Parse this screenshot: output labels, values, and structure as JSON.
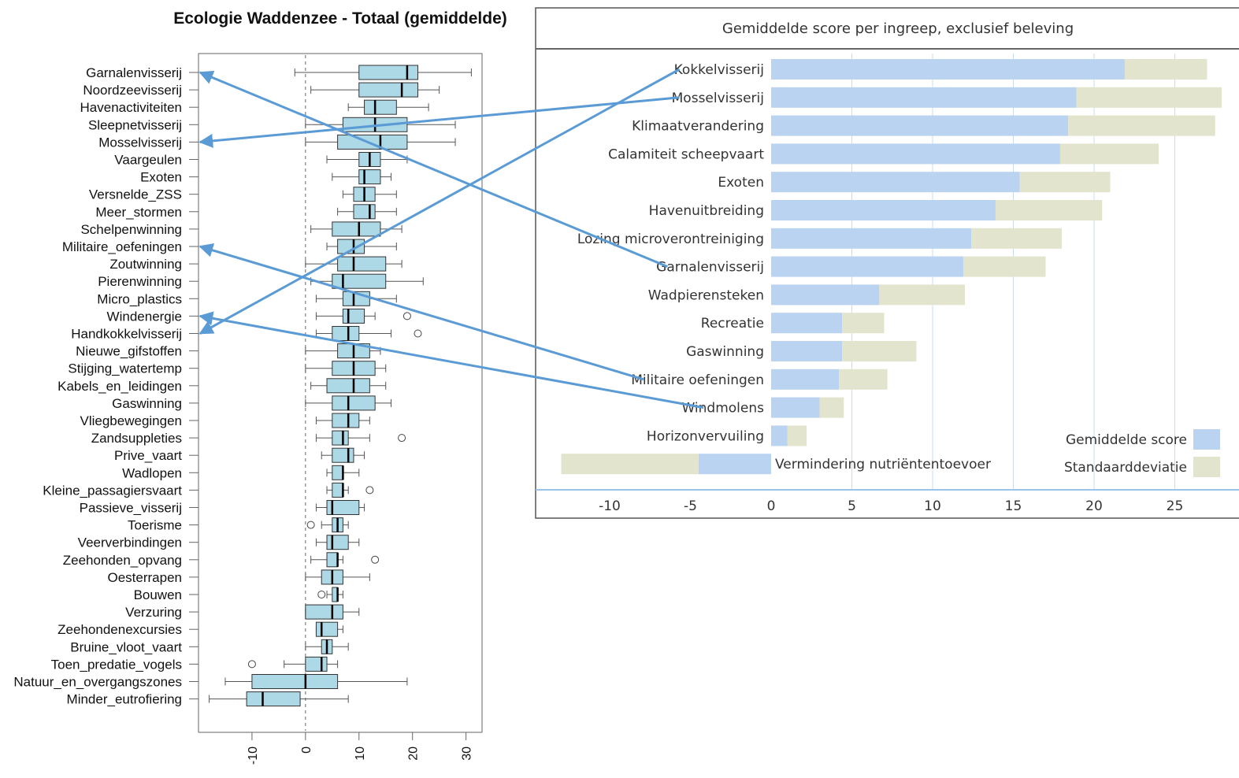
{
  "colors": {
    "box_fill": "#add8e6",
    "mean_bar": "#b9d3f0",
    "sd_bar": "#e3e4cd",
    "arrow": "#5b9bd5",
    "panel_border": "#555555",
    "grid": "#c9dcef"
  },
  "chart_data": [
    {
      "type": "boxplot",
      "title": "Ecologie Waddenzee - Totaal (gemiddelde)",
      "orientation": "horizontal",
      "xlim": [
        -20,
        33
      ],
      "xticks": [
        -10,
        0,
        10,
        20,
        30
      ],
      "xtick_labels": [
        "-10",
        "0",
        "10",
        "20",
        "30"
      ],
      "reference_line": 0,
      "series": [
        {
          "name": "Garnalenvisserij",
          "whisker_low": -2,
          "q1": 10,
          "median": 19,
          "q3": 21,
          "whisker_high": 31,
          "outliers": []
        },
        {
          "name": "Noordzeevisserij",
          "whisker_low": 1,
          "q1": 10,
          "median": 18,
          "q3": 21,
          "whisker_high": 25,
          "outliers": []
        },
        {
          "name": "Havenactiviteiten",
          "whisker_low": 8,
          "q1": 11,
          "median": 13,
          "q3": 17,
          "whisker_high": 23,
          "outliers": []
        },
        {
          "name": "Sleepnetvisserij",
          "whisker_low": 0,
          "q1": 7,
          "median": 13,
          "q3": 19,
          "whisker_high": 28,
          "outliers": []
        },
        {
          "name": "Mosselvisserij",
          "whisker_low": 0,
          "q1": 6,
          "median": 14,
          "q3": 19,
          "whisker_high": 28,
          "outliers": []
        },
        {
          "name": "Vaargeulen",
          "whisker_low": 4,
          "q1": 10,
          "median": 12,
          "q3": 14,
          "whisker_high": 19,
          "outliers": []
        },
        {
          "name": "Exoten",
          "whisker_low": 5,
          "q1": 10,
          "median": 11,
          "q3": 14,
          "whisker_high": 16,
          "outliers": []
        },
        {
          "name": "Versnelde_ZSS",
          "whisker_low": 7,
          "q1": 9,
          "median": 11,
          "q3": 13,
          "whisker_high": 17,
          "outliers": []
        },
        {
          "name": "Meer_stormen",
          "whisker_low": 6,
          "q1": 9,
          "median": 12,
          "q3": 13,
          "whisker_high": 17,
          "outliers": []
        },
        {
          "name": "Schelpenwinning",
          "whisker_low": 1,
          "q1": 5,
          "median": 10,
          "q3": 14,
          "whisker_high": 18,
          "outliers": []
        },
        {
          "name": "Militaire_oefeningen",
          "whisker_low": 4,
          "q1": 6,
          "median": 9,
          "q3": 11,
          "whisker_high": 17,
          "outliers": []
        },
        {
          "name": "Zoutwinning",
          "whisker_low": 0,
          "q1": 6,
          "median": 9,
          "q3": 15,
          "whisker_high": 18,
          "outliers": []
        },
        {
          "name": "Pierenwinning",
          "whisker_low": 1,
          "q1": 5,
          "median": 7,
          "q3": 15,
          "whisker_high": 22,
          "outliers": []
        },
        {
          "name": "Micro_plastics",
          "whisker_low": 2,
          "q1": 7,
          "median": 9,
          "q3": 12,
          "whisker_high": 17,
          "outliers": []
        },
        {
          "name": "Windenergie",
          "whisker_low": 2,
          "q1": 7,
          "median": 8,
          "q3": 11,
          "whisker_high": 13,
          "outliers": [
            19
          ]
        },
        {
          "name": "Handkokkelvisserij",
          "whisker_low": 2,
          "q1": 5,
          "median": 8,
          "q3": 10,
          "whisker_high": 16,
          "outliers": [
            21
          ]
        },
        {
          "name": "Nieuwe_gifstoffen",
          "whisker_low": 0,
          "q1": 6,
          "median": 9,
          "q3": 12,
          "whisker_high": 14,
          "outliers": []
        },
        {
          "name": "Stijging_watertemp",
          "whisker_low": 0,
          "q1": 5,
          "median": 9,
          "q3": 13,
          "whisker_high": 15,
          "outliers": []
        },
        {
          "name": "Kabels_en_leidingen",
          "whisker_low": 1,
          "q1": 4,
          "median": 9,
          "q3": 12,
          "whisker_high": 15,
          "outliers": []
        },
        {
          "name": "Gaswinning",
          "whisker_low": 0,
          "q1": 5,
          "median": 8,
          "q3": 13,
          "whisker_high": 16,
          "outliers": []
        },
        {
          "name": "Vliegbewegingen",
          "whisker_low": 2,
          "q1": 5,
          "median": 8,
          "q3": 10,
          "whisker_high": 12,
          "outliers": []
        },
        {
          "name": "Zandsuppleties",
          "whisker_low": 2,
          "q1": 5,
          "median": 7,
          "q3": 8,
          "whisker_high": 12,
          "outliers": [
            18
          ]
        },
        {
          "name": "Prive_vaart",
          "whisker_low": 3,
          "q1": 5,
          "median": 8,
          "q3": 9,
          "whisker_high": 11,
          "outliers": []
        },
        {
          "name": "Wadlopen",
          "whisker_low": 4,
          "q1": 5,
          "median": 7,
          "q3": 7,
          "whisker_high": 10,
          "outliers": []
        },
        {
          "name": "Kleine_passagiersvaart",
          "whisker_low": 4,
          "q1": 5,
          "median": 7,
          "q3": 7,
          "whisker_high": 8,
          "outliers": [
            12
          ]
        },
        {
          "name": "Passieve_visserij",
          "whisker_low": 2,
          "q1": 4,
          "median": 5,
          "q3": 10,
          "whisker_high": 11,
          "outliers": []
        },
        {
          "name": "Toerisme",
          "whisker_low": 3,
          "q1": 5,
          "median": 6,
          "q3": 7,
          "whisker_high": 8,
          "outliers": [
            1
          ]
        },
        {
          "name": "Veerverbindingen",
          "whisker_low": 2,
          "q1": 4,
          "median": 5,
          "q3": 8,
          "whisker_high": 10,
          "outliers": []
        },
        {
          "name": "Zeehonden_opvang",
          "whisker_low": 1,
          "q1": 4,
          "median": 6,
          "q3": 6,
          "whisker_high": 7,
          "outliers": [
            13
          ]
        },
        {
          "name": "Oesterrapen",
          "whisker_low": 0,
          "q1": 3,
          "median": 5,
          "q3": 7,
          "whisker_high": 12,
          "outliers": []
        },
        {
          "name": "Bouwen",
          "whisker_low": 4,
          "q1": 5,
          "median": 6,
          "q3": 6,
          "whisker_high": 7,
          "outliers": [
            3
          ]
        },
        {
          "name": "Verzuring",
          "whisker_low": 0,
          "q1": 0,
          "median": 5,
          "q3": 7,
          "whisker_high": 10,
          "outliers": []
        },
        {
          "name": "Zeehondenexcursies",
          "whisker_low": 2,
          "q1": 2,
          "median": 3,
          "q3": 6,
          "whisker_high": 7,
          "outliers": []
        },
        {
          "name": "Bruine_vloot_vaart",
          "whisker_low": 0,
          "q1": 3,
          "median": 4,
          "q3": 5,
          "whisker_high": 8,
          "outliers": []
        },
        {
          "name": "Toen_predatie_vogels",
          "whisker_low": -4,
          "q1": 0,
          "median": 3,
          "q3": 4,
          "whisker_high": 6,
          "outliers": [
            -10
          ]
        },
        {
          "name": "Natuur_en_overgangszones",
          "whisker_low": -15,
          "q1": -10,
          "median": 0,
          "q3": 6,
          "whisker_high": 19,
          "outliers": []
        },
        {
          "name": "Minder_eutrofiering",
          "whisker_low": -18,
          "q1": -11,
          "median": -8,
          "q3": -1,
          "whisker_high": 8,
          "outliers": []
        }
      ]
    },
    {
      "type": "bar",
      "orientation": "horizontal",
      "stacked": true,
      "title": "Gemiddelde score per ingreep, exclusief beleving",
      "xlim": [
        -13,
        28
      ],
      "xticks": [
        -10,
        -5,
        0,
        5,
        10,
        15,
        20,
        25
      ],
      "xtick_labels": [
        "-10",
        "-5",
        "0",
        "5",
        "10",
        "15",
        "20",
        "25"
      ],
      "grid": true,
      "legend_position": "bottom-right",
      "categories": [
        "Kokkelvisserij",
        "Mosselvisserij",
        "Klimaatverandering",
        "Calamiteit scheepvaart",
        "Exoten",
        "Havenuitbreiding",
        "Lozing microverontreiniging",
        "Garnalenvisserij",
        "Wadpierensteken",
        "Recreatie",
        "Gaswinning",
        "Militaire oefeningen",
        "Windmolens",
        "Horizonvervuiling",
        "Vermindering nutriëntentoevoer"
      ],
      "series": [
        {
          "name": "Gemiddelde score",
          "values": [
            21.9,
            18.9,
            18.4,
            17.9,
            15.4,
            13.9,
            12.4,
            11.9,
            6.7,
            4.4,
            4.4,
            4.2,
            3.0,
            1.0,
            -4.5
          ]
        },
        {
          "name": "Standaarddeviatie",
          "values": [
            5.1,
            9.0,
            9.1,
            6.1,
            5.6,
            6.6,
            5.6,
            5.1,
            5.3,
            2.6,
            4.6,
            3.0,
            1.5,
            1.2,
            -8.5
          ]
        }
      ]
    }
  ],
  "connectors": [
    {
      "from": "Kokkelvisserij",
      "to": "Handkokkelvisserij"
    },
    {
      "from": "Mosselvisserij",
      "to": "Mosselvisserij"
    },
    {
      "from": "Garnalenvisserij",
      "to": "Garnalenvisserij"
    },
    {
      "from": "Militaire oefeningen",
      "to": "Militaire_oefeningen"
    },
    {
      "from": "Windmolens",
      "to": "Windenergie"
    }
  ]
}
